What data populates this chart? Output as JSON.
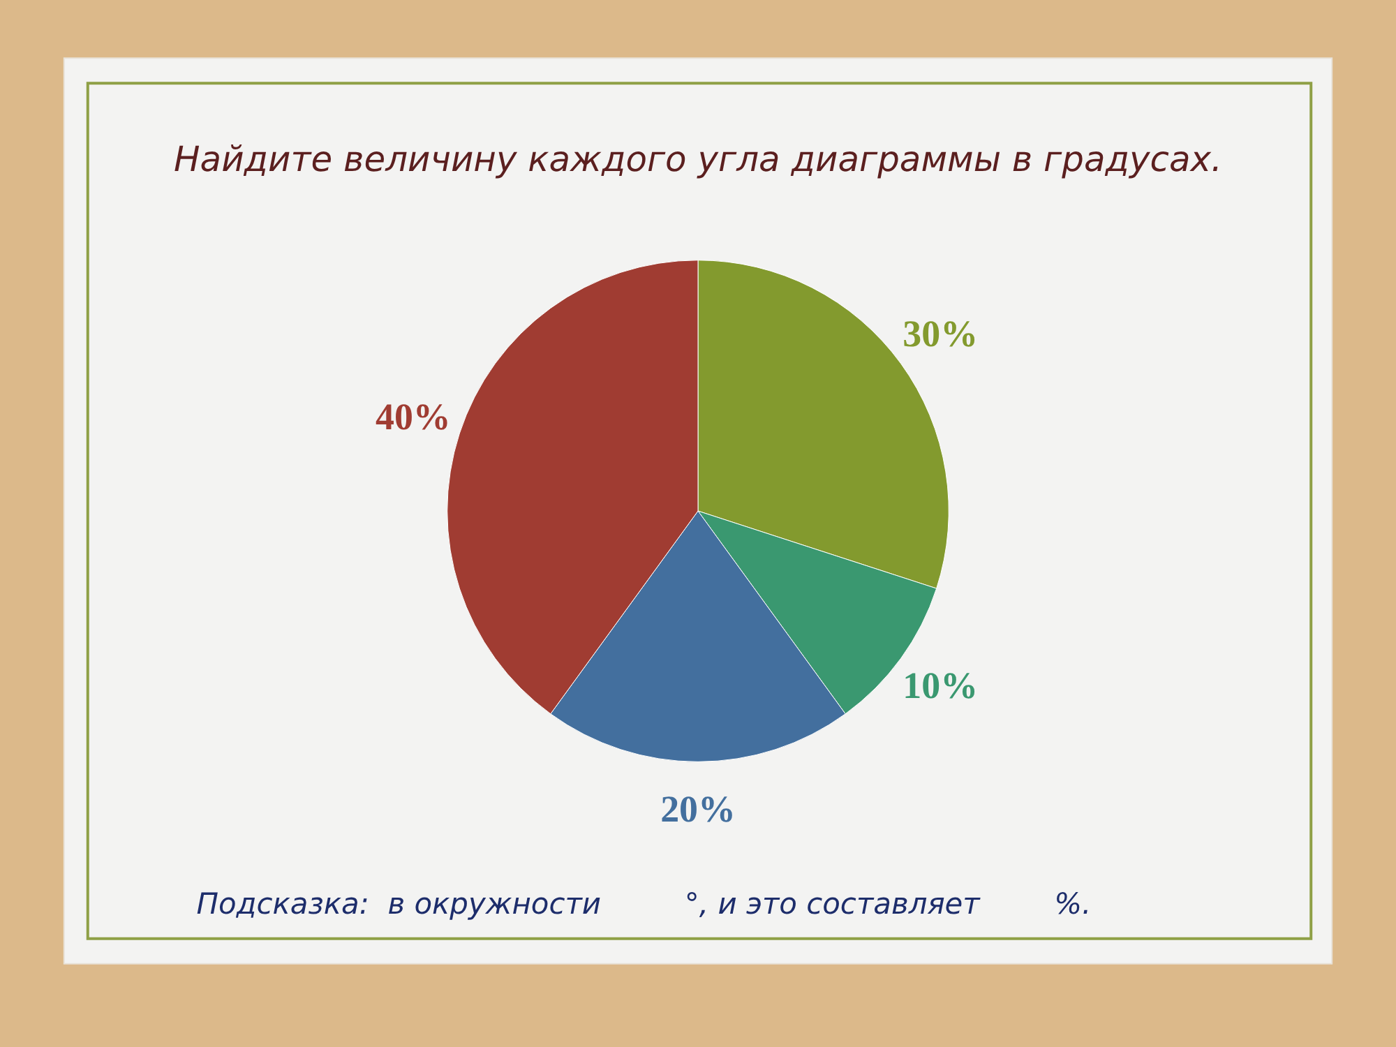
{
  "chart_data": {
    "type": "pie",
    "title": "Найдите величину каждого угла диаграммы в градусах.",
    "categories": [
      null,
      null,
      null,
      null
    ],
    "values": [
      30,
      10,
      20,
      40
    ],
    "colors": [
      "#839a2e",
      "#3a9870",
      "#436f9e",
      "#a03c32"
    ],
    "value_labels": [
      "30%",
      "10%",
      "20%",
      "40%"
    ],
    "annotations": [
      "Подсказка:  в окружности         °, и это составляет        %."
    ]
  }
}
